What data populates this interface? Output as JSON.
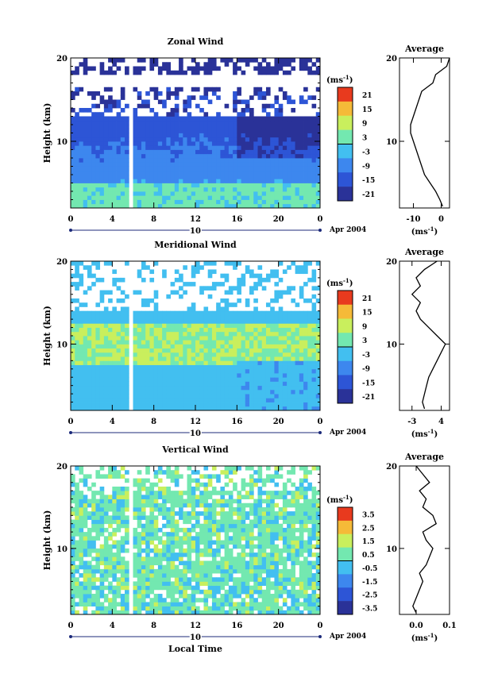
{
  "figure": {
    "x_ticks": [
      "0",
      "4",
      "8",
      "12",
      "16",
      "20",
      "0"
    ],
    "date_label": "10",
    "month_label": "Apr 2004",
    "xlabel": "Local Time",
    "ylabel": "Height (km)",
    "unit": "(ms",
    "unit_exp": "-1",
    "unit_close": ")",
    "avg_unit": "(ms",
    "avg_title": "Average"
  },
  "chart_data": [
    {
      "type": "heatmap",
      "title": "Zonal Wind",
      "xlabel": "",
      "ylabel": "Height (km)",
      "xlim": [
        0,
        24
      ],
      "ylim": [
        2,
        20
      ],
      "y_ticks": [
        "20",
        "10"
      ],
      "colorbar_ticks": [
        "21",
        "15",
        "9",
        "3",
        "-3",
        "-9",
        "-15",
        "-21"
      ],
      "colorbar_range": [
        -24,
        24
      ],
      "notable_values": {
        "jet_core_ms": -21,
        "near_surface_ms": 3
      },
      "average_profile": {
        "xlim": [
          -15,
          3
        ],
        "x_ticks": [
          "-10",
          "0"
        ],
        "x_tick_values": [
          -10,
          0
        ],
        "y_ticks": [
          "20",
          "10"
        ],
        "height_km": [
          2.2,
          3,
          4,
          5,
          6,
          7,
          8,
          9,
          10,
          11,
          12,
          13,
          14,
          15,
          16,
          17,
          18,
          19,
          20
        ],
        "values_ms": [
          0.5,
          -0.5,
          -2,
          -4,
          -6,
          -7,
          -8,
          -9,
          -10,
          -11,
          -11,
          -10,
          -9,
          -8,
          -7,
          -3,
          -2,
          2,
          3
        ]
      }
    },
    {
      "type": "heatmap",
      "title": "Meridional Wind",
      "xlabel": "",
      "ylabel": "Height (km)",
      "xlim": [
        0,
        24
      ],
      "ylim": [
        2,
        20
      ],
      "y_ticks": [
        "20",
        "10"
      ],
      "colorbar_ticks": [
        "21",
        "15",
        "9",
        "3",
        "-3",
        "-9",
        "-15",
        "-21"
      ],
      "colorbar_range": [
        -24,
        24
      ],
      "average_profile": {
        "xlim": [
          -6,
          6
        ],
        "x_ticks": [
          "-3",
          "4"
        ],
        "x_tick_values": [
          -3,
          4
        ],
        "y_ticks": [
          "20",
          "10"
        ],
        "height_km": [
          2.2,
          3,
          4,
          5,
          6,
          7,
          8,
          9,
          10,
          11,
          12,
          13,
          14,
          15,
          16,
          17,
          18,
          19,
          20
        ],
        "values_ms": [
          0,
          -0.5,
          0,
          0.5,
          1,
          2,
          3,
          4,
          5,
          3,
          1,
          -1,
          -2,
          -1,
          -3,
          -1,
          -2,
          0,
          3
        ]
      }
    },
    {
      "type": "heatmap",
      "title": "Vertical Wind",
      "xlabel": "Local Time",
      "ylabel": "Height (km)",
      "xlim": [
        0,
        24
      ],
      "ylim": [
        2,
        20
      ],
      "y_ticks": [
        "20",
        "10"
      ],
      "colorbar_ticks": [
        "3.5",
        "2.5",
        "1.5",
        "0.5",
        "-0.5",
        "-1.5",
        "-2.5",
        "-3.5"
      ],
      "colorbar_range": [
        -4,
        4
      ],
      "average_profile": {
        "xlim": [
          -0.05,
          0.1
        ],
        "x_ticks": [
          "0.0",
          "0.1"
        ],
        "x_tick_values": [
          0.0,
          0.1
        ],
        "y_ticks": [
          "20",
          "10"
        ],
        "height_km": [
          2.2,
          3,
          4,
          5,
          6,
          7,
          8,
          9,
          10,
          11,
          12,
          13,
          14,
          15,
          16,
          17,
          18,
          19,
          20
        ],
        "values_ms": [
          0.0,
          -0.01,
          0.0,
          0.01,
          0.02,
          0.01,
          0.03,
          0.04,
          0.05,
          0.03,
          0.02,
          0.06,
          0.05,
          0.02,
          0.03,
          0.01,
          0.04,
          0.02,
          0.0
        ]
      }
    }
  ]
}
